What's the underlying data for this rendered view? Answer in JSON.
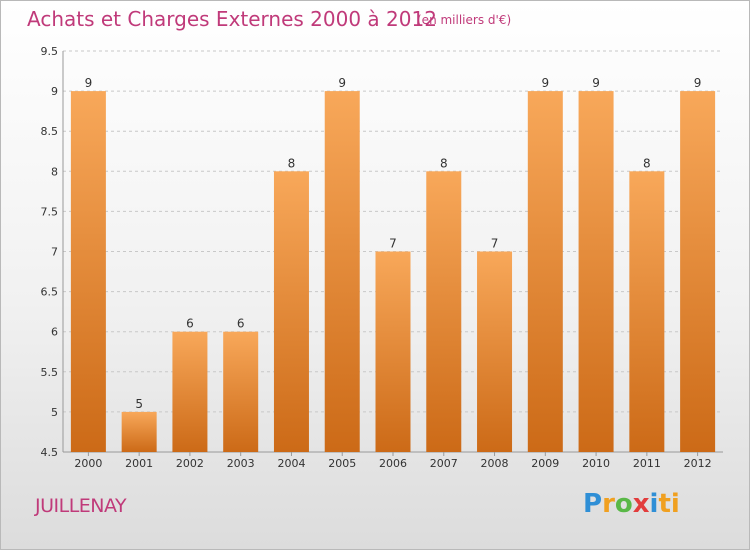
{
  "header": {
    "title": "Achats et Charges Externes 2000 à 2012",
    "unit": "(en milliers d'€)"
  },
  "footer": {
    "commune": "JUILLENAY",
    "logo_letters": [
      "P",
      "r",
      "o",
      "x",
      "i",
      "ti"
    ]
  },
  "colors": {
    "bar_top": "#f8a85a",
    "bar_bottom": "#cc6a17",
    "title": "#c03a7a",
    "grid": "#c8c8c8"
  },
  "chart_data": {
    "type": "bar",
    "categories": [
      "2000",
      "2001",
      "2002",
      "2003",
      "2004",
      "2005",
      "2006",
      "2007",
      "2008",
      "2009",
      "2010",
      "2011",
      "2012"
    ],
    "values": [
      9,
      5,
      6,
      6,
      8,
      9,
      7,
      8,
      7,
      9,
      9,
      8,
      9
    ],
    "data_labels": [
      "9",
      "5",
      "6",
      "6",
      "8",
      "9",
      "7",
      "8",
      "7",
      "9",
      "9",
      "8",
      "9"
    ],
    "title": "Achats et Charges Externes 2000 à 2012",
    "xlabel": "",
    "ylabel": "",
    "ylim": [
      4.5,
      9.5
    ],
    "yticks": [
      "4.5",
      "5",
      "5.5",
      "6",
      "6.5",
      "7",
      "7.5",
      "8",
      "8.5",
      "9",
      "9.5"
    ],
    "grid": true
  }
}
